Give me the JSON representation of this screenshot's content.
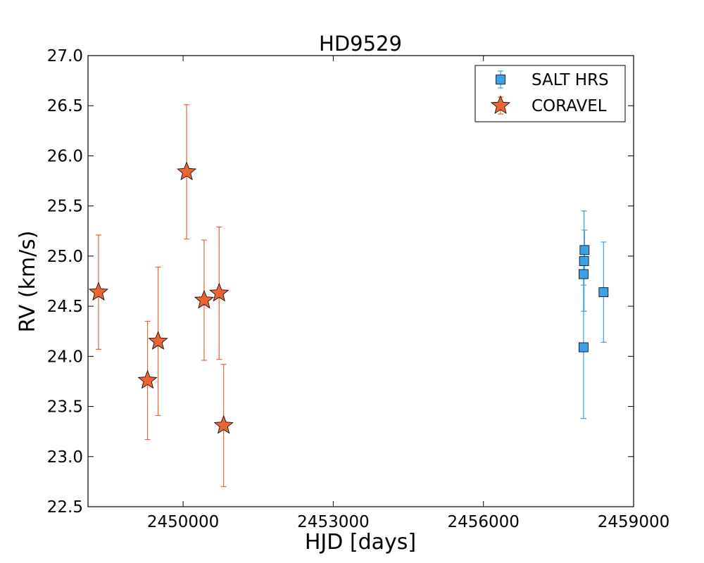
{
  "chart_data": {
    "type": "scatter",
    "title": "HD9529",
    "xlabel": "HJD [days]",
    "ylabel": "RV (km/s)",
    "xlim": [
      2448100,
      2459000
    ],
    "ylim": [
      22.5,
      27.0
    ],
    "xticks": [
      2450000,
      2453000,
      2456000,
      2459000
    ],
    "xtick_labels": [
      "2450000",
      "2453000",
      "2456000",
      "2459000"
    ],
    "yticks": [
      22.5,
      23.0,
      23.5,
      24.0,
      24.5,
      25.0,
      25.5,
      26.0,
      26.5,
      27.0
    ],
    "ytick_labels": [
      "22.5",
      "23.0",
      "23.5",
      "24.0",
      "24.5",
      "25.0",
      "25.5",
      "26.0",
      "26.5",
      "27.0"
    ],
    "grid": false,
    "legend_position": "top-right",
    "series": [
      {
        "name": "SALT HRS",
        "marker": "square",
        "color": "#3aa0e8",
        "points": [
          {
            "x": 2458000,
            "y": 24.09,
            "err": 0.71
          },
          {
            "x": 2458000,
            "y": 24.82,
            "err": 0.11
          },
          {
            "x": 2458010,
            "y": 24.95,
            "err": 0.5
          },
          {
            "x": 2458020,
            "y": 25.06,
            "err": 0.2
          },
          {
            "x": 2458400,
            "y": 24.64,
            "err": 0.5
          }
        ]
      },
      {
        "name": "CORAVEL",
        "marker": "star",
        "color": "#ec6432",
        "points": [
          {
            "x": 2448310,
            "y": 24.64,
            "err": 0.57
          },
          {
            "x": 2449290,
            "y": 23.76,
            "err": 0.59
          },
          {
            "x": 2449500,
            "y": 24.15,
            "err": 0.74
          },
          {
            "x": 2450070,
            "y": 25.84,
            "err": 0.67
          },
          {
            "x": 2450420,
            "y": 24.56,
            "err": 0.6
          },
          {
            "x": 2450720,
            "y": 24.63,
            "err": 0.66
          },
          {
            "x": 2450810,
            "y": 23.31,
            "err": 0.61
          }
        ]
      }
    ]
  }
}
